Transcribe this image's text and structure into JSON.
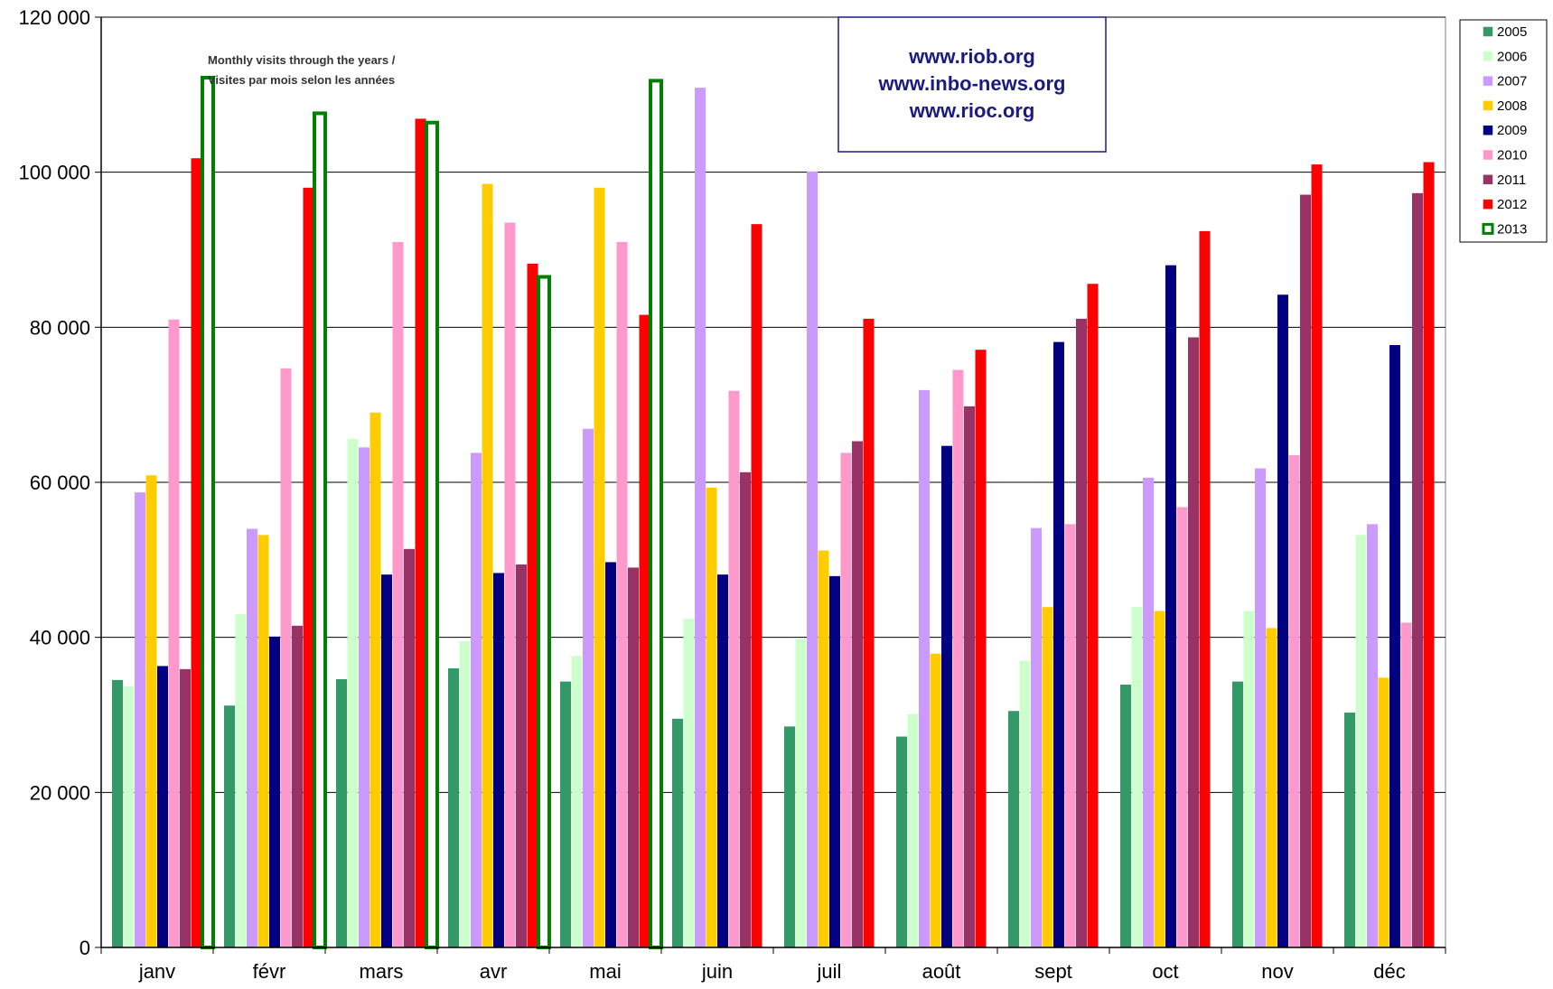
{
  "chart_data": {
    "type": "bar",
    "title": [
      "Monthly visits through the years /",
      "Visites par mois selon les années"
    ],
    "urls": [
      "www.riob.org",
      "www.inbo-news.org",
      "www.rioc.org"
    ],
    "categories": [
      "janv",
      "févr",
      "mars",
      "avr",
      "mai",
      "juin",
      "juil",
      "août",
      "sept",
      "oct",
      "nov",
      "déc"
    ],
    "ylim": [
      0,
      120000
    ],
    "yticks": [
      0,
      20000,
      40000,
      60000,
      80000,
      100000,
      120000
    ],
    "ytick_labels": [
      "0",
      "20 000",
      "40 000",
      "60 000",
      "80 000",
      "100 000",
      "120 000"
    ],
    "grid": true,
    "legend_position": "right",
    "series": [
      {
        "name": "2005",
        "color": "#339966",
        "values": [
          34500,
          31200,
          34600,
          36000,
          34300,
          29500,
          28500,
          27200,
          30500,
          33900,
          34300,
          30300
        ]
      },
      {
        "name": "2006",
        "color": "#ccffcc",
        "values": [
          33700,
          43000,
          65600,
          39500,
          37600,
          42400,
          39800,
          30100,
          37000,
          43900,
          43400,
          53200
        ]
      },
      {
        "name": "2007",
        "color": "#cc99ff",
        "values": [
          58700,
          54000,
          64500,
          63800,
          66900,
          110900,
          100100,
          71900,
          54100,
          60600,
          61800,
          54600
        ]
      },
      {
        "name": "2008",
        "color": "#ffcc00",
        "values": [
          60900,
          53200,
          69000,
          98500,
          98000,
          59300,
          51200,
          37900,
          43900,
          43400,
          41200,
          34800
        ]
      },
      {
        "name": "2009",
        "color": "#000080",
        "values": [
          36300,
          40100,
          48100,
          48300,
          49700,
          48100,
          47900,
          64700,
          78100,
          88000,
          84200,
          77700
        ]
      },
      {
        "name": "2010",
        "color": "#ff99cc",
        "values": [
          81000,
          74700,
          91000,
          93500,
          91000,
          71800,
          63800,
          74500,
          54600,
          56800,
          63500,
          41900
        ]
      },
      {
        "name": "2011",
        "color": "#993366",
        "values": [
          35900,
          41500,
          51400,
          49400,
          49000,
          61300,
          65300,
          69800,
          81100,
          78700,
          97100,
          97300
        ]
      },
      {
        "name": "2012",
        "color": "#ff0000",
        "values": [
          101800,
          98000,
          106900,
          88200,
          81600,
          93300,
          81100,
          77100,
          85600,
          92400,
          101000,
          101300
        ]
      },
      {
        "name": "2013",
        "color": "#008000",
        "values": [
          112200,
          107600,
          106400,
          86500,
          111800,
          null,
          null,
          null,
          null,
          null,
          null,
          null
        ]
      }
    ]
  }
}
